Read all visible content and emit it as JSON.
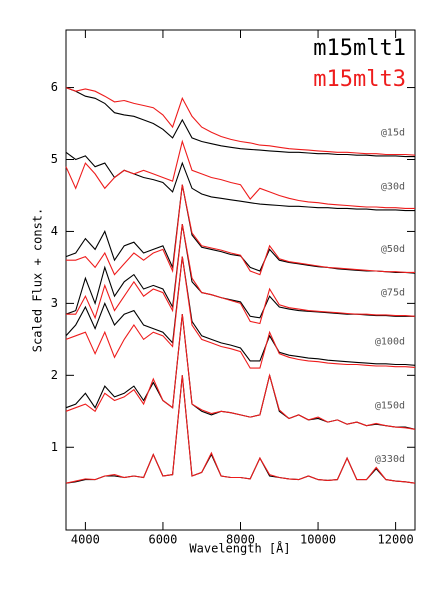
{
  "chart_data": {
    "type": "line",
    "xlabel": "Wavelength [Å]",
    "ylabel": "Scaled Flux + const.",
    "xlim": [
      3500,
      12500
    ],
    "xticks": [
      4000,
      6000,
      8000,
      10000,
      12000
    ],
    "ylim": [
      -0.15,
      6.8
    ],
    "yticks": [
      1,
      2,
      3,
      4,
      5,
      6
    ],
    "models": [
      {
        "name": "m15mlt1",
        "color": "#000000"
      },
      {
        "name": "m15mlt3",
        "color": "#ee1c1c"
      }
    ],
    "x": [
      3500,
      3750,
      4000,
      4250,
      4500,
      4750,
      5000,
      5250,
      5500,
      5750,
      6000,
      6250,
      6500,
      6750,
      7000,
      7250,
      7500,
      7750,
      8000,
      8250,
      8500,
      8750,
      9000,
      9250,
      9500,
      9750,
      10000,
      10250,
      10500,
      10750,
      11000,
      11250,
      11500,
      11750,
      12000,
      12250,
      12500
    ],
    "epochs": [
      {
        "label": "@15d",
        "values": [
          [
            6.0,
            5.95,
            5.88,
            5.85,
            5.78,
            5.65,
            5.62,
            5.6,
            5.55,
            5.5,
            5.42,
            5.3,
            5.55,
            5.3,
            5.25,
            5.22,
            5.19,
            5.17,
            5.15,
            5.14,
            5.13,
            5.12,
            5.11,
            5.1,
            5.1,
            5.09,
            5.08,
            5.08,
            5.07,
            5.07,
            5.06,
            5.06,
            5.05,
            5.05,
            5.05,
            5.04,
            5.04
          ],
          [
            6.0,
            5.95,
            5.98,
            5.95,
            5.88,
            5.8,
            5.82,
            5.78,
            5.75,
            5.72,
            5.62,
            5.45,
            5.85,
            5.6,
            5.45,
            5.38,
            5.32,
            5.28,
            5.25,
            5.23,
            5.2,
            5.19,
            5.17,
            5.15,
            5.14,
            5.13,
            5.12,
            5.11,
            5.1,
            5.1,
            5.09,
            5.08,
            5.08,
            5.07,
            5.07,
            5.07,
            5.06
          ]
        ]
      },
      {
        "label": "@30d",
        "values": [
          [
            5.1,
            5.0,
            5.05,
            4.9,
            4.95,
            4.75,
            4.85,
            4.8,
            4.75,
            4.72,
            4.68,
            4.55,
            4.95,
            4.6,
            4.52,
            4.48,
            4.46,
            4.44,
            4.42,
            4.4,
            4.38,
            4.37,
            4.36,
            4.35,
            4.35,
            4.34,
            4.33,
            4.33,
            4.32,
            4.32,
            4.31,
            4.31,
            4.3,
            4.3,
            4.3,
            4.29,
            4.29
          ],
          [
            4.9,
            4.6,
            4.95,
            4.8,
            4.6,
            4.75,
            4.85,
            4.8,
            4.85,
            4.8,
            4.75,
            4.7,
            5.25,
            4.85,
            4.8,
            4.75,
            4.72,
            4.68,
            4.65,
            4.45,
            4.6,
            4.55,
            4.5,
            4.46,
            4.43,
            4.41,
            4.4,
            4.38,
            4.37,
            4.36,
            4.35,
            4.34,
            4.34,
            4.33,
            4.33,
            4.32,
            4.32
          ]
        ]
      },
      {
        "label": "@50d",
        "values": [
          [
            3.65,
            3.7,
            3.9,
            3.75,
            4.0,
            3.6,
            3.8,
            3.85,
            3.7,
            3.75,
            3.8,
            3.5,
            4.65,
            3.95,
            3.78,
            3.75,
            3.72,
            3.68,
            3.66,
            3.5,
            3.45,
            3.75,
            3.6,
            3.57,
            3.55,
            3.53,
            3.51,
            3.5,
            3.48,
            3.47,
            3.46,
            3.45,
            3.45,
            3.44,
            3.43,
            3.43,
            3.42
          ],
          [
            3.6,
            3.6,
            3.65,
            3.5,
            3.7,
            3.4,
            3.55,
            3.7,
            3.6,
            3.7,
            3.75,
            3.45,
            4.65,
            3.98,
            3.8,
            3.77,
            3.74,
            3.7,
            3.67,
            3.45,
            3.4,
            3.8,
            3.62,
            3.58,
            3.56,
            3.54,
            3.52,
            3.5,
            3.49,
            3.48,
            3.47,
            3.46,
            3.45,
            3.44,
            3.44,
            3.43,
            3.43
          ]
        ]
      },
      {
        "label": "@75d",
        "values": [
          [
            2.85,
            2.9,
            3.35,
            3.0,
            3.5,
            3.1,
            3.3,
            3.4,
            3.2,
            3.25,
            3.2,
            2.95,
            4.1,
            3.3,
            3.15,
            3.12,
            3.08,
            3.05,
            3.02,
            2.82,
            2.8,
            3.1,
            2.95,
            2.92,
            2.9,
            2.89,
            2.88,
            2.87,
            2.86,
            2.85,
            2.85,
            2.84,
            2.83,
            2.83,
            2.82,
            2.82,
            2.82
          ],
          [
            2.85,
            2.85,
            3.1,
            2.8,
            3.25,
            2.9,
            3.1,
            3.3,
            3.1,
            3.2,
            3.15,
            2.9,
            4.1,
            3.35,
            3.15,
            3.12,
            3.08,
            3.04,
            3.0,
            2.75,
            2.72,
            3.2,
            2.98,
            2.94,
            2.92,
            2.9,
            2.89,
            2.88,
            2.87,
            2.86,
            2.85,
            2.85,
            2.84,
            2.84,
            2.83,
            2.83,
            2.82
          ]
        ]
      },
      {
        "label": "@100d",
        "values": [
          [
            2.55,
            2.7,
            2.95,
            2.65,
            3.0,
            2.7,
            2.85,
            2.9,
            2.7,
            2.65,
            2.6,
            2.45,
            3.65,
            2.75,
            2.55,
            2.5,
            2.45,
            2.42,
            2.38,
            2.2,
            2.2,
            2.55,
            2.32,
            2.28,
            2.26,
            2.24,
            2.23,
            2.21,
            2.2,
            2.19,
            2.18,
            2.17,
            2.16,
            2.16,
            2.15,
            2.15,
            2.14
          ],
          [
            2.5,
            2.55,
            2.6,
            2.3,
            2.6,
            2.25,
            2.5,
            2.7,
            2.5,
            2.6,
            2.55,
            2.4,
            3.65,
            2.7,
            2.5,
            2.45,
            2.4,
            2.37,
            2.33,
            2.1,
            2.1,
            2.6,
            2.3,
            2.25,
            2.22,
            2.2,
            2.19,
            2.17,
            2.16,
            2.15,
            2.15,
            2.14,
            2.13,
            2.13,
            2.12,
            2.12,
            2.11
          ]
        ]
      },
      {
        "label": "@150d",
        "values": [
          [
            1.55,
            1.6,
            1.75,
            1.55,
            1.85,
            1.7,
            1.75,
            1.85,
            1.65,
            1.9,
            1.65,
            1.55,
            2.85,
            1.6,
            1.5,
            1.45,
            1.5,
            1.48,
            1.45,
            1.42,
            1.45,
            2.0,
            1.5,
            1.4,
            1.45,
            1.38,
            1.4,
            1.35,
            1.38,
            1.32,
            1.35,
            1.3,
            1.32,
            1.3,
            1.28,
            1.28,
            1.25
          ],
          [
            1.5,
            1.55,
            1.6,
            1.5,
            1.75,
            1.65,
            1.7,
            1.8,
            1.6,
            1.95,
            1.65,
            1.55,
            2.85,
            1.6,
            1.52,
            1.47,
            1.5,
            1.48,
            1.45,
            1.42,
            1.45,
            2.0,
            1.52,
            1.4,
            1.45,
            1.38,
            1.42,
            1.35,
            1.38,
            1.32,
            1.35,
            1.3,
            1.33,
            1.3,
            1.28,
            1.27,
            1.25
          ]
        ]
      },
      {
        "label": "@330d",
        "values": [
          [
            0.5,
            0.52,
            0.55,
            0.55,
            0.6,
            0.6,
            0.58,
            0.6,
            0.58,
            0.9,
            0.6,
            0.62,
            2.0,
            0.6,
            0.65,
            0.9,
            0.6,
            0.58,
            0.58,
            0.56,
            0.85,
            0.6,
            0.58,
            0.56,
            0.55,
            0.6,
            0.55,
            0.54,
            0.55,
            0.85,
            0.55,
            0.55,
            0.7,
            0.55,
            0.53,
            0.52,
            0.5
          ],
          [
            0.5,
            0.53,
            0.56,
            0.55,
            0.6,
            0.62,
            0.58,
            0.6,
            0.58,
            0.9,
            0.6,
            0.62,
            2.0,
            0.6,
            0.65,
            0.92,
            0.6,
            0.58,
            0.58,
            0.56,
            0.85,
            0.62,
            0.58,
            0.56,
            0.55,
            0.6,
            0.55,
            0.54,
            0.55,
            0.85,
            0.55,
            0.55,
            0.72,
            0.55,
            0.53,
            0.52,
            0.5
          ]
        ]
      }
    ]
  }
}
